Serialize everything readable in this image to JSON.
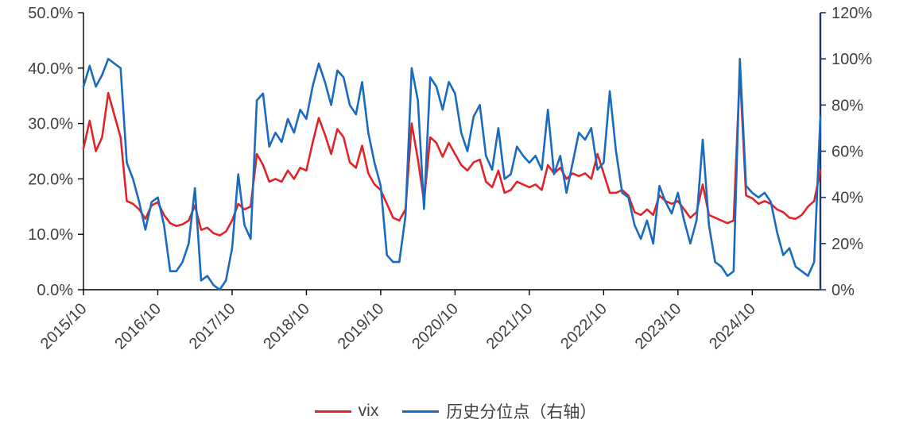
{
  "chart_data": {
    "type": "line",
    "title": "",
    "grid": false,
    "legend_position": "bottom",
    "n_points": 120,
    "x_tick_labels": [
      "2015/10",
      "2016/10",
      "2017/10",
      "2018/10",
      "2019/10",
      "2020/10",
      "2021/10",
      "2022/10",
      "2023/10",
      "2024/10"
    ],
    "x_tick_indices": [
      0,
      12,
      24,
      36,
      48,
      60,
      72,
      84,
      96,
      108
    ],
    "left_axis": {
      "min": 0,
      "max": 50,
      "tick_values": [
        0,
        10,
        20,
        30,
        40,
        50
      ],
      "tick_labels": [
        "0.0%",
        "10.0%",
        "20.0%",
        "30.0%",
        "40.0%",
        "50.0%"
      ]
    },
    "right_axis": {
      "min": 0,
      "max": 120,
      "tick_values": [
        0,
        20,
        40,
        60,
        80,
        100,
        120
      ],
      "tick_labels": [
        "0%",
        "20%",
        "40%",
        "60%",
        "80%",
        "100%",
        "120%"
      ]
    },
    "colors": {
      "axis": "#000000",
      "right_axis_line": "#1f3864",
      "tick_label": "#404040"
    },
    "series": [
      {
        "name": "vix",
        "axis": "left",
        "color": "#e02428",
        "values": [
          25.5,
          30.5,
          25.0,
          27.5,
          35.5,
          31.5,
          27.5,
          16.0,
          15.5,
          14.5,
          12.8,
          15.2,
          15.8,
          13.5,
          12.0,
          11.5,
          11.8,
          12.5,
          15.2,
          10.8,
          11.2,
          10.2,
          9.8,
          10.5,
          12.5,
          15.5,
          14.5,
          15.0,
          24.5,
          22.5,
          19.5,
          20.0,
          19.5,
          21.5,
          20.0,
          22.0,
          21.5,
          26.5,
          31.0,
          28.0,
          24.5,
          29.0,
          27.5,
          23.0,
          22.0,
          26.0,
          21.0,
          19.0,
          18.0,
          15.5,
          13.0,
          12.5,
          14.5,
          30.0,
          23.5,
          16.0,
          27.5,
          26.5,
          24.0,
          26.5,
          24.5,
          22.5,
          21.5,
          23.0,
          23.5,
          19.5,
          18.5,
          21.5,
          17.5,
          18.0,
          19.5,
          19.0,
          18.5,
          19.0,
          18.0,
          22.5,
          21.0,
          22.0,
          20.0,
          21.0,
          20.5,
          21.0,
          20.0,
          24.5,
          21.0,
          17.5,
          17.5,
          18.0,
          17.0,
          14.0,
          13.5,
          14.5,
          13.5,
          17.0,
          16.0,
          15.5,
          16.0,
          14.5,
          13.0,
          14.0,
          19.0,
          13.5,
          13.0,
          12.5,
          12.0,
          12.5,
          39.5,
          17.0,
          16.5,
          15.5,
          16.0,
          15.5,
          14.5,
          14.0,
          13.0,
          12.8,
          13.5,
          15.0,
          16.0,
          21.5
        ]
      },
      {
        "name": "历史分位点（右轴）",
        "axis": "right",
        "color": "#1a6bc0",
        "values": [
          88,
          97,
          88,
          93,
          100,
          98,
          96,
          55,
          48,
          38,
          26,
          38,
          40,
          28,
          8,
          8,
          12,
          20,
          44,
          4,
          6,
          2,
          0,
          4,
          18,
          50,
          28,
          22,
          82,
          85,
          62,
          68,
          64,
          74,
          68,
          78,
          74,
          88,
          98,
          90,
          80,
          95,
          92,
          80,
          76,
          90,
          68,
          55,
          45,
          15,
          12,
          12,
          32,
          96,
          82,
          35,
          92,
          88,
          78,
          90,
          85,
          68,
          60,
          75,
          80,
          58,
          52,
          70,
          48,
          50,
          62,
          58,
          55,
          58,
          52,
          78,
          50,
          58,
          42,
          55,
          68,
          65,
          70,
          52,
          55,
          86,
          60,
          42,
          40,
          28,
          22,
          30,
          20,
          45,
          38,
          33,
          42,
          30,
          20,
          30,
          65,
          28,
          12,
          10,
          6,
          8,
          100,
          45,
          42,
          40,
          42,
          38,
          25,
          15,
          18,
          10,
          8,
          6,
          12,
          75
        ]
      }
    ]
  }
}
